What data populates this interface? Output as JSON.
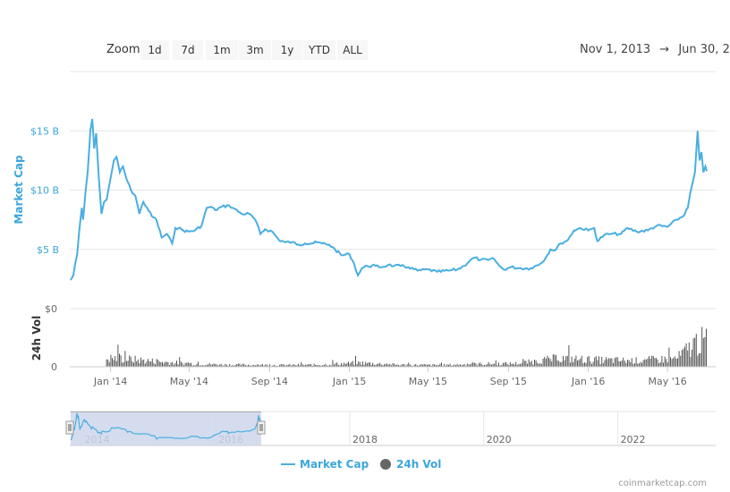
{
  "toolbar": {
    "zoom_label": "Zoom",
    "buttons": [
      "1d",
      "7d",
      "1m",
      "3m",
      "1y",
      "YTD",
      "ALL"
    ],
    "date_from": "Nov 1, 2013",
    "arrow": "→",
    "date_to": "Jun 30, 2"
  },
  "legend": {
    "market_cap": "Market Cap",
    "volume": "24h Vol"
  },
  "credit": "coinmarketcap.com",
  "colors": {
    "line": "#4aaee0",
    "volume": "#555555",
    "axis_label": "#3ba6dc",
    "navigator_mask": "#ccd6eb",
    "navigator_handle": "#f2f2f2"
  },
  "chart_data": [
    {
      "type": "line",
      "ylabel": "Market Cap",
      "yticks": [
        "$5 B",
        "$10 B",
        "$15 B"
      ],
      "ylim": [
        0,
        20
      ],
      "grid": true,
      "xticks": [
        "Jan '14",
        "May '14",
        "Sep '14",
        "Jan '15",
        "May '15",
        "Sep '15",
        "Jan '16",
        "May '16"
      ],
      "series": [
        {
          "name": "Market Cap",
          "x": [
            "2013-11-01",
            "2013-11-05",
            "2013-11-08",
            "2013-11-11",
            "2013-11-14",
            "2013-11-18",
            "2013-11-20",
            "2013-11-24",
            "2013-11-27",
            "2013-11-30",
            "2013-12-01",
            "2013-12-04",
            "2013-12-07",
            "2013-12-10",
            "2013-12-14",
            "2013-12-18",
            "2013-12-22",
            "2013-12-26",
            "2014-01-01",
            "2014-01-06",
            "2014-01-10",
            "2014-01-15",
            "2014-01-20",
            "2014-01-25",
            "2014-02-01",
            "2014-02-08",
            "2014-02-14",
            "2014-02-20",
            "2014-02-26",
            "2014-03-05",
            "2014-03-12",
            "2014-03-20",
            "2014-03-28",
            "2014-04-05",
            "2014-04-10",
            "2014-04-15",
            "2014-04-22",
            "2014-04-30",
            "2014-05-10",
            "2014-05-20",
            "2014-05-28",
            "2014-06-03",
            "2014-06-10",
            "2014-06-20",
            "2014-07-01",
            "2014-07-10",
            "2014-07-20",
            "2014-08-01",
            "2014-08-10",
            "2014-08-18",
            "2014-08-25",
            "2014-09-05",
            "2014-09-15",
            "2014-09-25",
            "2014-10-05",
            "2014-10-15",
            "2014-10-25",
            "2014-11-05",
            "2014-11-12",
            "2014-11-20",
            "2014-12-01",
            "2014-12-10",
            "2014-12-20",
            "2015-01-01",
            "2015-01-08",
            "2015-01-14",
            "2015-01-20",
            "2015-01-28",
            "2015-02-10",
            "2015-02-20",
            "2015-03-01",
            "2015-03-10",
            "2015-03-20",
            "2015-04-01",
            "2015-04-15",
            "2015-05-01",
            "2015-05-15",
            "2015-06-01",
            "2015-06-15",
            "2015-06-25",
            "2015-07-05",
            "2015-07-12",
            "2015-07-20",
            "2015-08-01",
            "2015-08-10",
            "2015-08-18",
            "2015-08-25",
            "2015-09-05",
            "2015-09-20",
            "2015-10-05",
            "2015-10-20",
            "2015-10-28",
            "2015-11-04",
            "2015-11-10",
            "2015-11-20",
            "2015-12-01",
            "2015-12-10",
            "2015-12-20",
            "2016-01-01",
            "2016-01-10",
            "2016-01-15",
            "2016-01-25",
            "2016-02-05",
            "2016-02-20",
            "2016-03-01",
            "2016-03-15",
            "2016-04-01",
            "2016-04-15",
            "2016-05-01",
            "2016-05-15",
            "2016-05-25",
            "2016-06-01",
            "2016-06-05",
            "2016-06-08",
            "2016-06-12",
            "2016-06-16",
            "2016-06-19",
            "2016-06-22",
            "2016-06-25",
            "2016-06-28",
            "2016-06-30"
          ],
          "values": [
            2.4,
            2.8,
            3.8,
            4.6,
            6.5,
            8.5,
            7.5,
            10.0,
            11.5,
            14.0,
            15.0,
            16.0,
            13.5,
            14.8,
            11.0,
            8.0,
            9.0,
            9.2,
            11.0,
            12.5,
            12.8,
            11.5,
            12.0,
            11.0,
            10.0,
            9.5,
            8.0,
            9.0,
            8.5,
            7.8,
            7.5,
            6.0,
            6.3,
            5.5,
            6.8,
            6.8,
            6.6,
            6.5,
            6.6,
            7.0,
            8.5,
            8.6,
            8.3,
            8.6,
            8.7,
            8.4,
            8.0,
            8.0,
            7.5,
            6.3,
            6.7,
            6.5,
            5.8,
            5.6,
            5.6,
            5.4,
            5.5,
            5.5,
            5.6,
            5.5,
            5.4,
            5.0,
            4.5,
            4.6,
            3.8,
            2.8,
            3.4,
            3.6,
            3.6,
            3.5,
            3.7,
            3.6,
            3.6,
            3.5,
            3.2,
            3.3,
            3.1,
            3.2,
            3.3,
            3.6,
            4.1,
            4.3,
            4.1,
            4.1,
            4.2,
            3.6,
            3.3,
            3.5,
            3.4,
            3.4,
            3.8,
            4.3,
            5.0,
            4.9,
            5.5,
            5.8,
            6.6,
            6.8,
            6.6,
            6.8,
            5.7,
            6.2,
            6.3,
            6.3,
            6.8,
            6.5,
            6.6,
            7.0,
            6.9,
            7.5,
            7.8,
            8.5,
            9.8,
            10.5,
            11.5,
            15.0,
            12.5,
            13.2,
            11.5,
            12.0,
            11.6
          ]
        }
      ]
    },
    {
      "type": "bar",
      "ylabel": "24h Vol",
      "yticks": [
        "$0",
        "0"
      ],
      "note": "daily volume bars; values relative, peaks late in period",
      "series": [
        {
          "name": "24h Vol",
          "x": [
            "2014-01",
            "2014-03",
            "2014-05",
            "2014-07",
            "2014-09",
            "2014-11",
            "2015-01",
            "2015-03",
            "2015-05",
            "2015-07",
            "2015-09",
            "2015-11",
            "2016-01",
            "2016-03",
            "2016-05",
            "2016-06"
          ],
          "values": [
            0.25,
            0.15,
            0.08,
            0.06,
            0.05,
            0.06,
            0.12,
            0.06,
            0.05,
            0.08,
            0.1,
            0.25,
            0.2,
            0.18,
            0.25,
            0.75
          ]
        }
      ]
    },
    {
      "type": "area",
      "role": "navigator",
      "xticks": [
        "2014",
        "2016",
        "2018",
        "2020",
        "2022"
      ],
      "selected_range": [
        "2013-11-01",
        "2016-06-30"
      ]
    }
  ]
}
